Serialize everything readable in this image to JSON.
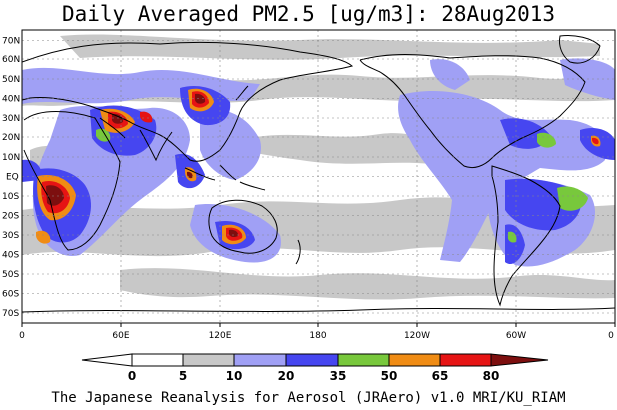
{
  "title": "Daily Averaged PM2.5 [ug/m3]: 28Aug2013",
  "footer": "The Japanese Reanalysis for Aerosol (JRAero) v1.0 MRI/KU_RIAM",
  "map": {
    "lat_labels": [
      "70N",
      "60N",
      "50N",
      "40N",
      "30N",
      "20N",
      "10N",
      "EQ",
      "10S",
      "20S",
      "30S",
      "40S",
      "50S",
      "60S",
      "70S"
    ],
    "lon_labels": [
      "0",
      "60E",
      "120E",
      "180",
      "120W",
      "60W",
      "0"
    ],
    "grid": "dotted",
    "projection": "equirectangular"
  },
  "colorbar": {
    "ticks": [
      "0",
      "5",
      "10",
      "20",
      "35",
      "50",
      "65",
      "80"
    ],
    "colors": [
      "#ffffff",
      "#c8c8c8",
      "#a0a0f5",
      "#4646f0",
      "#78c83c",
      "#f08c14",
      "#e61414",
      "#7d0f0f"
    ]
  },
  "palette": {
    "land": "#ffffff",
    "grey": "#c8c8c8",
    "lightblue": "#a0a0f5",
    "blue": "#4646f0",
    "green": "#78c83c",
    "orange": "#f08c14",
    "red": "#e61414",
    "darkred": "#7d0f0f",
    "coast": "#000000"
  }
}
